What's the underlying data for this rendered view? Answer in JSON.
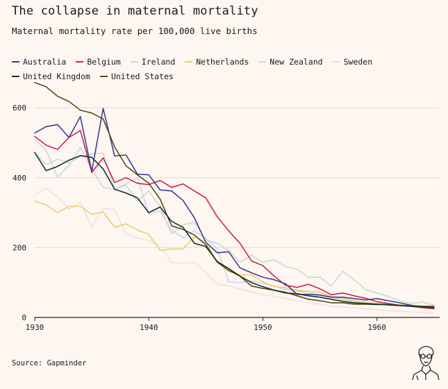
{
  "header": {
    "title": "The collapse in maternal mortality",
    "subtitle": "Maternal mortality rate per 100,000 live births"
  },
  "footer": {
    "source": "Source: Gapminder"
  },
  "chart_data": {
    "type": "line",
    "title": "The collapse in maternal mortality",
    "subtitle": "Maternal mortality rate per 100,000 live births",
    "xlabel": "",
    "ylabel": "",
    "xlim": [
      1930,
      1965.5
    ],
    "ylim": [
      0,
      640
    ],
    "x_ticks": [
      1930,
      1940,
      1950,
      1960
    ],
    "y_ticks": [
      0,
      200,
      400,
      600
    ],
    "grid": "horizontal",
    "legend_position": "top",
    "x": [
      1930,
      1931,
      1932,
      1933,
      1934,
      1935,
      1936,
      1937,
      1938,
      1939,
      1940,
      1941,
      1942,
      1943,
      1944,
      1945,
      1946,
      1947,
      1948,
      1949,
      1950,
      1951,
      1952,
      1953,
      1954,
      1955,
      1956,
      1957,
      1958,
      1959,
      1960,
      1961,
      1962,
      1963,
      1964,
      1965
    ],
    "series": [
      {
        "name": "Australia",
        "color": "#3a3f8f",
        "values": [
          528,
          546,
          552,
          515,
          575,
          418,
          598,
          462,
          465,
          410,
          408,
          365,
          362,
          335,
          285,
          215,
          185,
          188,
          142,
          128,
          115,
          108,
          96,
          66,
          66,
          64,
          58,
          58,
          54,
          50,
          54,
          48,
          42,
          35,
          30,
          28
        ]
      },
      {
        "name": "Belgium",
        "color": "#d1224f",
        "values": [
          518,
          493,
          481,
          515,
          535,
          415,
          457,
          386,
          400,
          384,
          380,
          392,
          372,
          382,
          362,
          342,
          288,
          248,
          212,
          162,
          148,
          118,
          92,
          86,
          95,
          82,
          65,
          70,
          62,
          55,
          45,
          40,
          35,
          32,
          28,
          25
        ]
      },
      {
        "name": "Ireland",
        "color": "#c8dbd3",
        "values": [
          472,
          437,
          453,
          442,
          460,
          468,
          470,
          368,
          378,
          333,
          362,
          316,
          240,
          265,
          272,
          222,
          212,
          192,
          158,
          178,
          158,
          165,
          145,
          138,
          115,
          115,
          90,
          132,
          108,
          80,
          70,
          60,
          48,
          40,
          44,
          35
        ]
      },
      {
        "name": "Netherlands",
        "color": "#f0cd6a",
        "values": [
          333,
          322,
          300,
          318,
          318,
          295,
          302,
          258,
          268,
          250,
          238,
          192,
          196,
          196,
          232,
          215,
          158,
          132,
          122,
          122,
          102,
          88,
          85,
          78,
          75,
          72,
          60,
          55,
          48,
          42,
          40,
          36,
          34,
          32,
          30,
          30
        ]
      },
      {
        "name": "New Zealand",
        "color": "#cfd3ec",
        "values": [
          510,
          478,
          402,
          434,
          486,
          425,
          372,
          366,
          382,
          400,
          296,
          305,
          250,
          228,
          248,
          225,
          197,
          102,
          100,
          105,
          98,
          90,
          80,
          76,
          70,
          66,
          60,
          50,
          46,
          44,
          40,
          38,
          34,
          32,
          30,
          28
        ]
      },
      {
        "name": "Sweden",
        "color": "#f0e0e2",
        "values": [
          352,
          370,
          345,
          310,
          330,
          258,
          312,
          308,
          240,
          228,
          220,
          205,
          158,
          155,
          158,
          130,
          95,
          90,
          82,
          72,
          65,
          60,
          55,
          48,
          42,
          38,
          32,
          30,
          28,
          25,
          22,
          20,
          18,
          16,
          14,
          12
        ]
      },
      {
        "name": "United Kingdom",
        "color": "#11332b",
        "values": [
          472,
          420,
          432,
          450,
          463,
          458,
          425,
          367,
          356,
          342,
          300,
          316,
          275,
          258,
          212,
          203,
          160,
          140,
          118,
          100,
          88,
          78,
          70,
          68,
          62,
          58,
          52,
          46,
          42,
          40,
          38,
          36,
          34,
          32,
          30,
          28
        ]
      },
      {
        "name": "United States",
        "color": "#5b4a12",
        "values": [
          672,
          660,
          633,
          618,
          593,
          585,
          568,
          488,
          434,
          408,
          384,
          338,
          262,
          252,
          236,
          208,
          158,
          135,
          118,
          90,
          83,
          78,
          72,
          62,
          52,
          48,
          42,
          42,
          38,
          38,
          37,
          37,
          35,
          34,
          32,
          32
        ]
      }
    ]
  }
}
